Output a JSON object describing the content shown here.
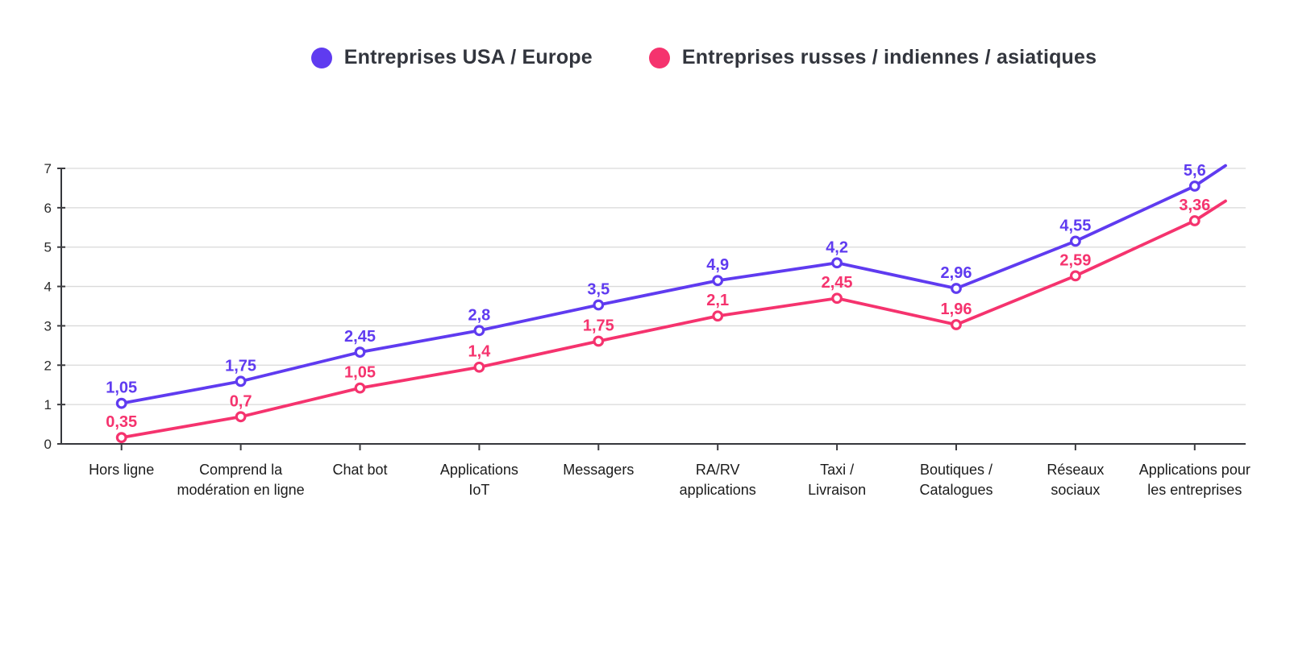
{
  "legend": {
    "items": [
      {
        "label": "Entreprises USA / Europe",
        "color": "#5f3bf0"
      },
      {
        "label": "Entreprises russes / indiennes / asiatiques",
        "color": "#f5336e"
      }
    ]
  },
  "chart_data": {
    "type": "line",
    "title": "",
    "xlabel": "",
    "ylabel": "",
    "categories": [
      [
        "Hors ligne"
      ],
      [
        "Comprend la",
        "modération en ligne"
      ],
      [
        "Chat bot"
      ],
      [
        "Applications",
        "IoT"
      ],
      [
        "Messagers"
      ],
      [
        "RA/RV",
        "applications"
      ],
      [
        "Taxi /",
        "Livraison"
      ],
      [
        "Boutiques /",
        "Catalogues"
      ],
      [
        "Réseaux",
        "sociaux"
      ],
      [
        "Applications pour",
        "les entreprises"
      ]
    ],
    "series": [
      {
        "name": "Entreprises USA / Europe",
        "color": "#5f3bf0",
        "values": [
          1.05,
          1.75,
          2.45,
          2.8,
          3.5,
          4.9,
          4.2,
          2.96,
          4.55,
          5.6
        ],
        "point_labels": [
          "1,05",
          "1,75",
          "2,45",
          "2,8",
          "3,5",
          "4,9",
          "4,2",
          "2,96",
          "4,55",
          "5,6"
        ],
        "plotted_y": [
          1.03,
          1.59,
          2.33,
          2.88,
          3.53,
          4.15,
          4.6,
          3.95,
          5.15,
          6.55
        ],
        "right_edge_y": 7.07
      },
      {
        "name": "Entreprises russes / indiennes / asiatiques",
        "color": "#f5336e",
        "values": [
          0.35,
          0.7,
          1.05,
          1.4,
          1.75,
          2.1,
          2.45,
          1.96,
          2.59,
          3.36
        ],
        "point_labels": [
          "0,35",
          "0,7",
          "1,05",
          "1,4",
          "1,75",
          "2,1",
          "2,45",
          "1,96",
          "2,59",
          "3,36"
        ],
        "plotted_y": [
          0.16,
          0.69,
          1.42,
          1.95,
          2.61,
          3.25,
          3.7,
          3.03,
          4.27,
          5.67
        ],
        "right_edge_y": 6.17
      }
    ],
    "ylim": [
      0,
      7
    ],
    "yticks": [
      "0",
      "1",
      "2",
      "3",
      "4",
      "5",
      "6",
      "7"
    ],
    "grid": true,
    "legend_position": "top",
    "marker_style": "open-circle",
    "decimal_separator": ",",
    "grid_color": "#d9d9d9",
    "axis_color": "#35373c",
    "tick_color": "#3c3c40",
    "axis_label_color": "#2b2b2b",
    "category_label_color": "#1b1b1b"
  }
}
